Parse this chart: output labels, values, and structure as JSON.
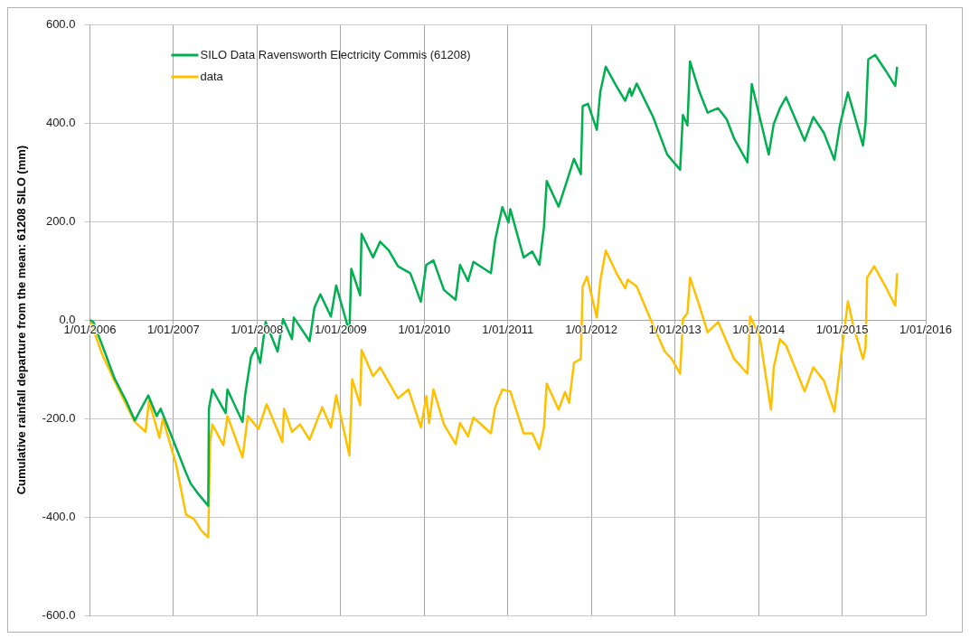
{
  "chart_data": {
    "type": "line",
    "ylabel": "Cumulative rainfall departure from the mean: 61208 SILO (mm)",
    "xlim": [
      "2006-01-01",
      "2016-01-01"
    ],
    "xticks": [
      {
        "value": "2006-01-01",
        "label": "1/01/2006"
      },
      {
        "value": "2007-01-01",
        "label": "1/01/2007"
      },
      {
        "value": "2008-01-01",
        "label": "1/01/2008"
      },
      {
        "value": "2009-01-01",
        "label": "1/01/2009"
      },
      {
        "value": "2010-01-01",
        "label": "1/01/2010"
      },
      {
        "value": "2011-01-01",
        "label": "1/01/2011"
      },
      {
        "value": "2012-01-01",
        "label": "1/01/2012"
      },
      {
        "value": "2013-01-01",
        "label": "1/01/2013"
      },
      {
        "value": "2014-01-01",
        "label": "1/01/2014"
      },
      {
        "value": "2015-01-01",
        "label": "1/01/2015"
      },
      {
        "value": "2016-01-01",
        "label": "1/01/2016"
      }
    ],
    "ylim": [
      -600,
      600
    ],
    "yticks": [
      {
        "value": -600,
        "label": "-600.0"
      },
      {
        "value": -400,
        "label": "-400.0"
      },
      {
        "value": -200,
        "label": "-200.0"
      },
      {
        "value": 0,
        "label": "0.0"
      },
      {
        "value": 200,
        "label": "200.0"
      },
      {
        "value": 400,
        "label": "400.0"
      },
      {
        "value": 600,
        "label": "600.0"
      }
    ],
    "grid": true,
    "legend": "top left",
    "marker": "none",
    "line_style": "solid",
    "series": [
      {
        "name": "SILO Data Ravensworth Electricity Commis (61208)",
        "color": "#00b050",
        "x": [
          "2006-01-01",
          "2006-01-16",
          "2006-03-11",
          "2006-04-18",
          "2006-06-08",
          "2006-07-16",
          "2006-09-13",
          "2006-10-20",
          "2006-11-06",
          "2006-12-30",
          "2007-02-22",
          "2007-03-17",
          "2007-04-23",
          "2007-06-02",
          "2007-06-05",
          "2007-06-20",
          "2007-08-17",
          "2007-08-25",
          "2007-10-30",
          "2007-11-10",
          "2007-12-06",
          "2007-12-26",
          "2008-01-15",
          "2008-02-08",
          "2008-03-31",
          "2008-04-24",
          "2008-06-02",
          "2008-06-10",
          "2008-08-18",
          "2008-09-08",
          "2008-10-04",
          "2008-11-19",
          "2008-12-12",
          "2009-02-08",
          "2009-02-16",
          "2009-03-27",
          "2009-04-02",
          "2009-05-22",
          "2009-06-22",
          "2009-07-30",
          "2009-09-08",
          "2009-11-01",
          "2009-12-17",
          "2010-01-10",
          "2010-02-10",
          "2010-03-28",
          "2010-05-18",
          "2010-06-06",
          "2010-07-11",
          "2010-08-04",
          "2010-10-19",
          "2010-11-07",
          "2010-12-08",
          "2011-01-04",
          "2011-01-12",
          "2011-03-11",
          "2011-04-18",
          "2011-05-19",
          "2011-06-08",
          "2011-06-20",
          "2011-08-11",
          "2011-09-08",
          "2011-10-17",
          "2011-11-16",
          "2011-11-24",
          "2011-12-17",
          "2012-01-25",
          "2012-02-09",
          "2012-03-04",
          "2012-04-19",
          "2012-05-28",
          "2012-06-17",
          "2012-06-25",
          "2012-07-17",
          "2012-09-27",
          "2012-11-27",
          "2013-01-23",
          "2013-02-04",
          "2013-02-24",
          "2013-03-07",
          "2013-04-15",
          "2013-05-23",
          "2013-07-08",
          "2013-08-15",
          "2013-09-16",
          "2013-11-13",
          "2013-12-02",
          "2014-02-14",
          "2014-03-08",
          "2014-04-04",
          "2014-05-01",
          "2014-07-21",
          "2014-08-28",
          "2014-10-13",
          "2014-11-28",
          "2014-12-22",
          "2015-01-26",
          "2015-04-02",
          "2015-04-13",
          "2015-04-25",
          "2015-05-25",
          "2015-07-09",
          "2015-08-21",
          "2015-08-29"
        ],
        "values": [
          0,
          -4,
          -70,
          -118,
          -164,
          -204,
          -153,
          -195,
          -180,
          -243,
          -307,
          -332,
          -355,
          -377,
          -180,
          -141,
          -189,
          -141,
          -207,
          -153,
          -75,
          -57,
          -87,
          -4,
          -64,
          2,
          -39,
          5,
          -43,
          25,
          52,
          7,
          70,
          -25,
          104,
          50,
          175,
          127,
          159,
          141,
          109,
          95,
          37,
          112,
          121,
          61,
          41,
          112,
          79,
          118,
          95,
          163,
          229,
          198,
          225,
          127,
          139,
          112,
          189,
          282,
          230,
          270,
          327,
          296,
          434,
          439,
          386,
          463,
          514,
          475,
          445,
          470,
          455,
          480,
          412,
          336,
          305,
          416,
          395,
          525,
          466,
          421,
          430,
          407,
          368,
          320,
          479,
          336,
          398,
          430,
          452,
          364,
          412,
          380,
          325,
          395,
          462,
          354,
          398,
          529,
          538,
          507,
          475,
          514
        ]
      },
      {
        "name": "data",
        "color": "#ffc000",
        "x": [
          "2006-01-05",
          "2006-02-24",
          "2006-04-18",
          "2006-07-16",
          "2006-09-01",
          "2006-09-16",
          "2006-11-01",
          "2006-11-16",
          "2007-01-14",
          "2007-02-25",
          "2007-04-01",
          "2007-05-02",
          "2007-06-02",
          "2007-06-10",
          "2007-06-20",
          "2007-08-07",
          "2007-08-25",
          "2007-10-30",
          "2007-11-22",
          "2008-01-08",
          "2008-02-12",
          "2008-04-21",
          "2008-04-28",
          "2008-06-02",
          "2008-07-07",
          "2008-08-18",
          "2008-10-12",
          "2008-11-19",
          "2008-12-12",
          "2009-02-08",
          "2009-02-20",
          "2009-03-27",
          "2009-04-02",
          "2009-05-22",
          "2009-06-22",
          "2009-09-08",
          "2009-10-24",
          "2009-12-17",
          "2010-01-10",
          "2010-01-22",
          "2010-02-10",
          "2010-03-28",
          "2010-05-18",
          "2010-06-06",
          "2010-07-11",
          "2010-08-04",
          "2010-10-19",
          "2010-11-07",
          "2010-12-08",
          "2011-01-12",
          "2011-03-11",
          "2011-04-18",
          "2011-05-19",
          "2011-06-08",
          "2011-06-20",
          "2011-08-11",
          "2011-09-08",
          "2011-09-26",
          "2011-10-17",
          "2011-11-16",
          "2011-11-24",
          "2011-12-13",
          "2012-01-25",
          "2012-02-09",
          "2012-03-04",
          "2012-04-19",
          "2012-05-28",
          "2012-06-08",
          "2012-07-17",
          "2012-09-27",
          "2012-11-17",
          "2012-12-17",
          "2013-01-23",
          "2013-02-04",
          "2013-02-24",
          "2013-03-07",
          "2013-04-15",
          "2013-05-23",
          "2013-07-08",
          "2013-09-16",
          "2013-11-13",
          "2013-11-25",
          "2014-01-06",
          "2014-02-24",
          "2014-03-08",
          "2014-04-04",
          "2014-05-01",
          "2014-07-21",
          "2014-08-28",
          "2014-10-13",
          "2014-11-28",
          "2014-12-22",
          "2015-01-26",
          "2015-02-18",
          "2015-04-02",
          "2015-04-13",
          "2015-04-20",
          "2015-05-21",
          "2015-07-09",
          "2015-08-21",
          "2015-08-29"
        ],
        "values": [
          -4,
          -70,
          -123,
          -207,
          -227,
          -164,
          -239,
          -200,
          -296,
          -395,
          -404,
          -427,
          -441,
          -248,
          -212,
          -254,
          -195,
          -279,
          -195,
          -221,
          -171,
          -248,
          -180,
          -227,
          -212,
          -243,
          -177,
          -218,
          -153,
          -275,
          -120,
          -173,
          -61,
          -114,
          -96,
          -159,
          -141,
          -218,
          -155,
          -209,
          -141,
          -212,
          -252,
          -209,
          -236,
          -198,
          -230,
          -177,
          -141,
          -145,
          -230,
          -230,
          -262,
          -218,
          -129,
          -182,
          -146,
          -168,
          -87,
          -79,
          68,
          88,
          5,
          79,
          141,
          96,
          64,
          82,
          68,
          -11,
          -64,
          -79,
          -109,
          2,
          14,
          86,
          32,
          -25,
          -4,
          -79,
          -109,
          7,
          -34,
          -182,
          -96,
          -39,
          -52,
          -145,
          -96,
          -123,
          -186,
          -96,
          38,
          -11,
          -79,
          -57,
          86,
          109,
          68,
          29,
          95
        ]
      }
    ]
  }
}
